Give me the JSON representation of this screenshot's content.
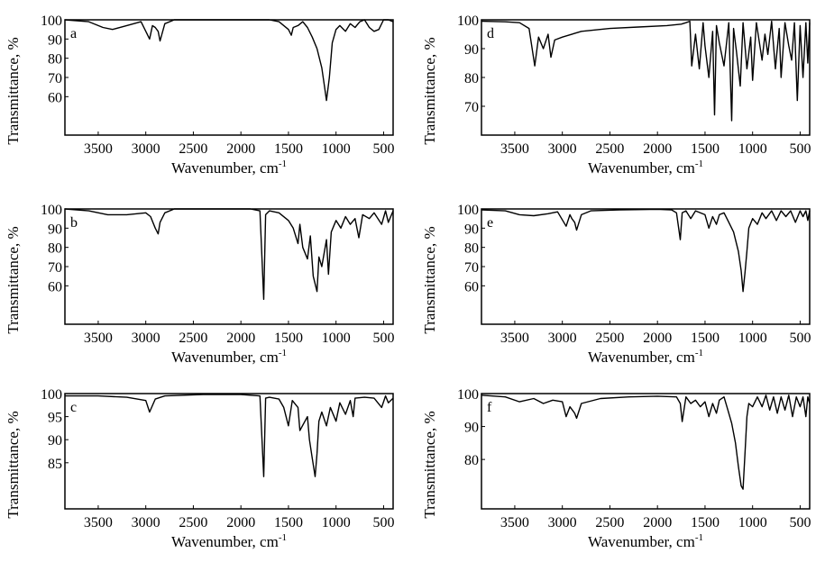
{
  "chart_data": [
    {
      "type": "line",
      "panel_label": "a",
      "ylabel": "Transmittance, %",
      "xlabel": "Wavenumber, cm",
      "xlabel_sup": "-1",
      "xticks": [
        "3500",
        "3000",
        "2500",
        "2000",
        "1500",
        "1000",
        "500"
      ],
      "yticks": [
        "100",
        "90",
        "80",
        "70",
        "60"
      ],
      "ylim": [
        40,
        100
      ],
      "xlim": [
        3850,
        400
      ],
      "series": [
        {
          "x": [
            3850,
            3600,
            3450,
            3350,
            3200,
            3050,
            2960,
            2930,
            2900,
            2870,
            2850,
            2800,
            2700,
            2300,
            1900,
            1700,
            1600,
            1500,
            1470,
            1450,
            1400,
            1350,
            1300,
            1250,
            1200,
            1150,
            1120,
            1100,
            1070,
            1040,
            1000,
            960,
            900,
            850,
            800,
            750,
            700,
            650,
            600,
            550,
            500,
            450,
            400
          ],
          "y": [
            100,
            99,
            96,
            95,
            97,
            99,
            90,
            97,
            96,
            94,
            89,
            98,
            100,
            100,
            100,
            100,
            99,
            95,
            92,
            96,
            97,
            99,
            96,
            91,
            85,
            75,
            65,
            58,
            70,
            88,
            95,
            97,
            94,
            98,
            96,
            99,
            100,
            96,
            94,
            95,
            100,
            100,
            99
          ]
        }
      ]
    },
    {
      "type": "line",
      "panel_label": "b",
      "ylabel": "Transmittance, %",
      "xlabel": "Wavenumber, cm",
      "xlabel_sup": "-1",
      "xticks": [
        "3500",
        "3000",
        "2500",
        "2000",
        "1500",
        "1000",
        "500"
      ],
      "yticks": [
        "100",
        "90",
        "80",
        "70",
        "60"
      ],
      "ylim": [
        40,
        100
      ],
      "xlim": [
        3850,
        400
      ],
      "series": [
        {
          "x": [
            3850,
            3600,
            3400,
            3200,
            3000,
            2950,
            2900,
            2870,
            2850,
            2800,
            2700,
            2300,
            1900,
            1800,
            1760,
            1740,
            1700,
            1600,
            1500,
            1450,
            1400,
            1380,
            1350,
            1300,
            1270,
            1240,
            1200,
            1180,
            1150,
            1100,
            1080,
            1050,
            1000,
            950,
            900,
            850,
            800,
            760,
            720,
            650,
            600,
            520,
            480,
            450,
            400
          ],
          "y": [
            100,
            99,
            97,
            97,
            98,
            96,
            90,
            87,
            93,
            98,
            100,
            100,
            100,
            99,
            53,
            97,
            99,
            98,
            94,
            90,
            82,
            92,
            80,
            74,
            86,
            65,
            57,
            75,
            70,
            84,
            66,
            88,
            94,
            90,
            96,
            92,
            95,
            85,
            97,
            95,
            98,
            92,
            99,
            93,
            99
          ]
        }
      ]
    },
    {
      "type": "line",
      "panel_label": "c",
      "ylabel": "Transmittance, %",
      "xlabel": "Wavenumber, cm",
      "xlabel_sup": "-1",
      "xticks": [
        "3500",
        "3000",
        "2500",
        "2000",
        "1500",
        "1000",
        "500"
      ],
      "yticks": [
        "100",
        "95",
        "90",
        "85"
      ],
      "ylim": [
        75,
        100
      ],
      "xlim": [
        3850,
        400
      ],
      "series": [
        {
          "x": [
            3850,
            3500,
            3200,
            3000,
            2960,
            2900,
            2800,
            2400,
            2000,
            1800,
            1760,
            1740,
            1700,
            1600,
            1550,
            1500,
            1460,
            1400,
            1380,
            1300,
            1280,
            1250,
            1220,
            1200,
            1180,
            1150,
            1100,
            1060,
            1000,
            960,
            900,
            850,
            820,
            800,
            700,
            600,
            520,
            480,
            450,
            400
          ],
          "y": [
            99.5,
            99.5,
            99.2,
            98.5,
            96,
            98.8,
            99.5,
            99.8,
            99.8,
            99.5,
            82,
            99,
            99.2,
            98.8,
            97,
            93,
            98.5,
            97,
            92,
            95,
            90,
            86,
            82,
            87,
            94,
            96,
            93,
            97,
            94,
            98,
            95.5,
            98.5,
            95,
            99,
            99.2,
            99,
            97,
            99.5,
            98,
            99
          ]
        }
      ]
    },
    {
      "type": "line",
      "panel_label": "d",
      "ylabel": "Transmittance, %",
      "xlabel": "Wavenumber, cm",
      "xlabel_sup": "-1",
      "xticks": [
        "3500",
        "3000",
        "2500",
        "2000",
        "1500",
        "1000",
        "500"
      ],
      "yticks": [
        "100",
        "90",
        "80",
        "70"
      ],
      "ylim": [
        60,
        100
      ],
      "xlim": [
        3850,
        400
      ],
      "series": [
        {
          "x": [
            3850,
            3600,
            3450,
            3350,
            3290,
            3250,
            3200,
            3150,
            3120,
            3080,
            3000,
            2800,
            2500,
            2200,
            1900,
            1750,
            1700,
            1660,
            1640,
            1600,
            1560,
            1520,
            1500,
            1460,
            1420,
            1400,
            1380,
            1350,
            1300,
            1250,
            1220,
            1200,
            1170,
            1130,
            1100,
            1060,
            1020,
            1000,
            960,
            900,
            870,
            840,
            800,
            760,
            720,
            700,
            660,
            620,
            590,
            560,
            530,
            500,
            470,
            440,
            420,
            400
          ],
          "y": [
            99.5,
            99.3,
            99,
            97,
            84,
            94,
            90,
            95,
            87,
            93,
            94,
            96,
            97,
            97.5,
            98,
            98.5,
            99,
            99.5,
            84,
            95,
            83,
            99,
            91,
            80,
            96,
            67,
            98,
            92,
            84,
            99,
            65,
            97,
            89,
            77,
            99,
            83,
            94,
            79,
            99,
            86,
            95,
            88,
            99.5,
            83,
            97,
            80,
            99,
            91,
            86,
            99,
            72,
            98,
            80,
            99,
            85,
            99
          ]
        }
      ]
    },
    {
      "type": "line",
      "panel_label": "e",
      "ylabel": "Transmittance, %",
      "xlabel": "Wavenumber, cm",
      "xlabel_sup": "-1",
      "xticks": [
        "3500",
        "3000",
        "2500",
        "2000",
        "1500",
        "1000",
        "500"
      ],
      "yticks": [
        "100",
        "90",
        "80",
        "70",
        "60"
      ],
      "ylim": [
        40,
        100
      ],
      "xlim": [
        3850,
        400
      ],
      "series": [
        {
          "x": [
            3850,
            3600,
            3450,
            3300,
            3150,
            3050,
            2960,
            2920,
            2900,
            2870,
            2850,
            2800,
            2700,
            2400,
            2000,
            1850,
            1800,
            1760,
            1740,
            1700,
            1650,
            1600,
            1500,
            1460,
            1420,
            1380,
            1350,
            1300,
            1260,
            1200,
            1150,
            1120,
            1100,
            1080,
            1060,
            1040,
            1000,
            950,
            900,
            860,
            800,
            750,
            700,
            650,
            600,
            550,
            500,
            470,
            440,
            420,
            400
          ],
          "y": [
            99.5,
            99,
            97,
            96.5,
            97.5,
            98.5,
            91,
            97,
            95,
            93,
            89,
            97,
            99,
            99.5,
            99.8,
            99.5,
            98,
            84,
            98,
            99,
            95,
            99,
            97,
            90,
            96,
            92,
            97,
            98,
            94,
            88,
            78,
            68,
            57,
            67,
            78,
            90,
            95,
            92,
            98,
            95,
            99,
            94,
            99,
            96,
            99,
            93,
            99,
            96,
            99,
            94,
            99
          ]
        }
      ]
    },
    {
      "type": "line",
      "panel_label": "f",
      "ylabel": "Transmittance, %",
      "xlabel": "Wavenumber, cm",
      "xlabel_sup": "-1",
      "xticks": [
        "3500",
        "3000",
        "2500",
        "2000",
        "1500",
        "1000",
        "500"
      ],
      "yticks": [
        "100",
        "90",
        "80"
      ],
      "ylim": [
        65,
        100
      ],
      "xlim": [
        3850,
        400
      ],
      "series": [
        {
          "x": [
            3850,
            3600,
            3450,
            3300,
            3200,
            3100,
            3000,
            2960,
            2920,
            2870,
            2850,
            2800,
            2600,
            2300,
            2000,
            1800,
            1760,
            1740,
            1700,
            1650,
            1600,
            1550,
            1500,
            1460,
            1420,
            1380,
            1350,
            1300,
            1260,
            1220,
            1180,
            1150,
            1120,
            1100,
            1080,
            1060,
            1040,
            1000,
            950,
            900,
            860,
            820,
            780,
            740,
            700,
            660,
            620,
            580,
            540,
            500,
            470,
            440,
            420,
            400
          ],
          "y": [
            99.5,
            99,
            97.5,
            98.5,
            97,
            98,
            97.5,
            93,
            96,
            94,
            92.5,
            97,
            98.5,
            99,
            99.2,
            99,
            97,
            91.5,
            99,
            97,
            98,
            96,
            97.5,
            93,
            97,
            94,
            98,
            99,
            95,
            91,
            85,
            78,
            72,
            71,
            82,
            93,
            97,
            96,
            99,
            96,
            99.5,
            95,
            99,
            94,
            99,
            95,
            99.5,
            93,
            99,
            96,
            99,
            93,
            99,
            97
          ]
        }
      ]
    }
  ]
}
